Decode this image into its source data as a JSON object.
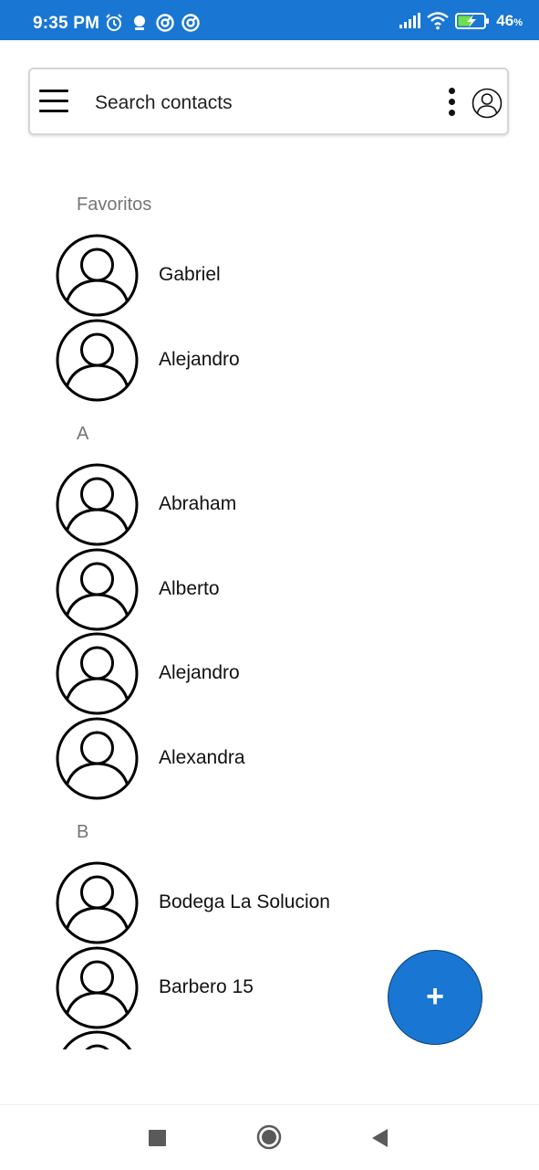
{
  "status_bar": {
    "time": "9:35 PM",
    "battery_percent": "46",
    "battery_unit": "%",
    "left_icons": [
      "alarm-icon",
      "notification-icon",
      "app-icon",
      "app-icon"
    ],
    "right_icons": [
      "signal-icon",
      "wifi-icon",
      "battery-charging-icon"
    ],
    "background_color": "#1976d2"
  },
  "search": {
    "placeholder": "Search contacts",
    "menu_icon": "menu-icon",
    "more_icon": "more-vert-icon",
    "account_icon": "account-icon"
  },
  "sections": [
    {
      "header": "Favoritos",
      "contacts": [
        {
          "name": "Gabriel"
        },
        {
          "name": "Alejandro"
        }
      ]
    },
    {
      "header": "A",
      "contacts": [
        {
          "name": "Abraham"
        },
        {
          "name": "Alberto"
        },
        {
          "name": "Alejandro"
        },
        {
          "name": "Alexandra"
        }
      ]
    },
    {
      "header": "B",
      "contacts": [
        {
          "name": "Bodega La Solucion"
        },
        {
          "name": "Barbero 15"
        },
        {
          "name": ""
        }
      ]
    }
  ],
  "fab": {
    "label": "+",
    "color": "#1976d2"
  },
  "nav_bar": {
    "icons": [
      "recents-icon",
      "home-icon",
      "back-icon"
    ]
  }
}
